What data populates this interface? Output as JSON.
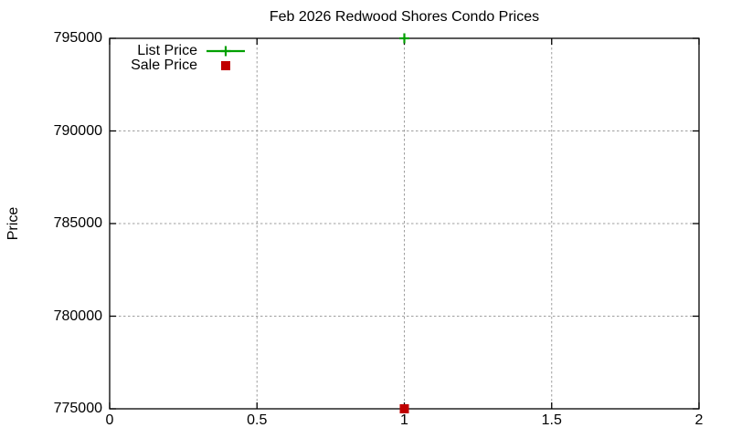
{
  "page": {
    "background": "#ffffff"
  },
  "chart_data": {
    "type": "scatter",
    "title": "Feb 2026 Redwood Shores Condo Prices",
    "xlabel": "",
    "ylabel": "Price",
    "xlim": [
      0,
      2
    ],
    "ylim": [
      775000,
      795000
    ],
    "xticks": [
      0,
      0.5,
      1,
      1.5,
      2
    ],
    "xtick_labels": [
      "0",
      "0.5",
      "1",
      "1.5",
      "2"
    ],
    "yticks": [
      775000,
      780000,
      785000,
      790000,
      795000
    ],
    "ytick_labels": [
      "775000",
      "780000",
      "785000",
      "790000",
      "795000"
    ],
    "grid": true,
    "legend": {
      "position": "top-left-inside",
      "entries": [
        "List Price",
        "Sale Price"
      ]
    },
    "series": [
      {
        "name": "List Price",
        "marker": "plus",
        "color": "#00a000",
        "points": [
          {
            "x": 1,
            "y": 795000
          }
        ]
      },
      {
        "name": "Sale Price",
        "marker": "square",
        "color": "#c00000",
        "points": [
          {
            "x": 1,
            "y": 775000
          }
        ]
      }
    ],
    "colors": {
      "grid": "#9e9e9e",
      "axis": "#000000",
      "text": "#000000"
    }
  }
}
